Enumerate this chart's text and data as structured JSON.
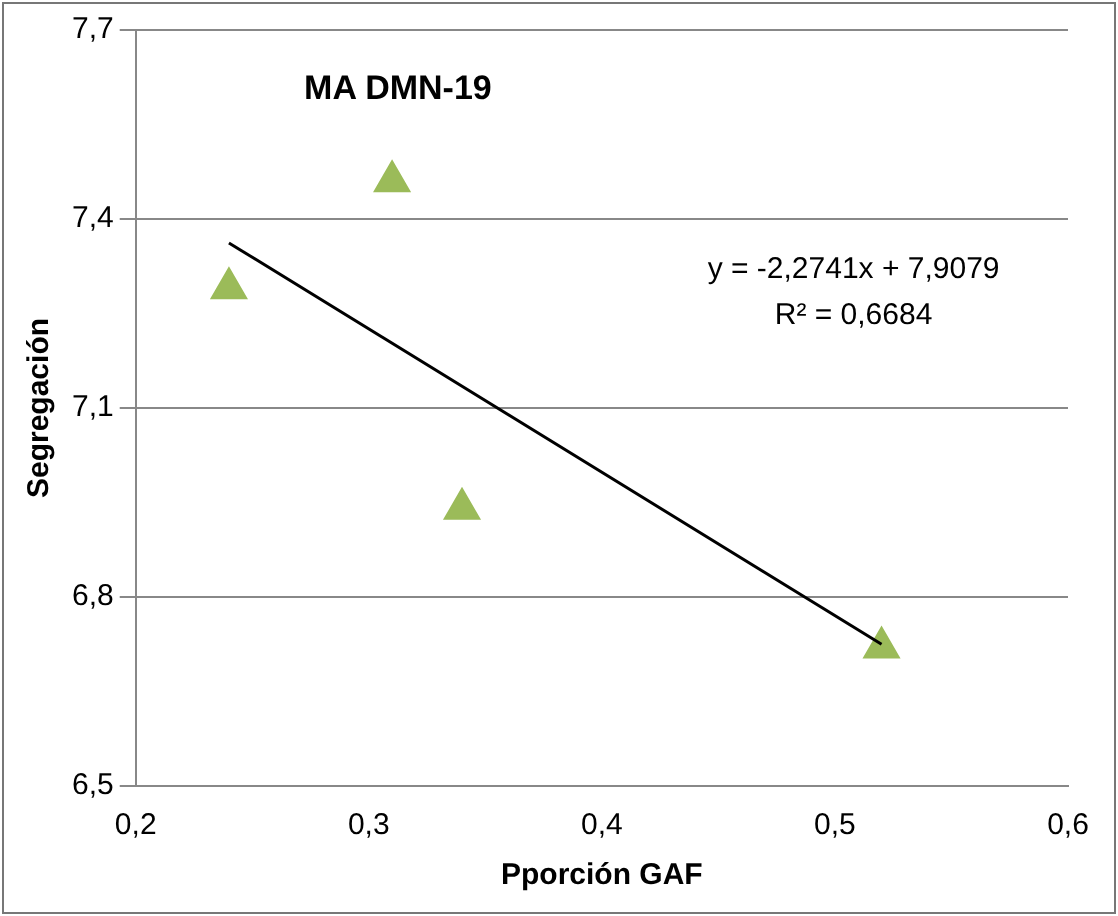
{
  "chart_data": {
    "type": "scatter",
    "title": "MA DMN-19",
    "xlabel": "Pporción GAF",
    "ylabel": "Segregación",
    "series": [
      {
        "color": "#9bbb59",
        "x": [
          0.24,
          0.31,
          0.34,
          0.52
        ],
        "values": [
          7.29,
          7.46,
          6.94,
          6.72
        ],
        "marker": "triangle"
      },
      {
        "type": "line",
        "color": "#000000",
        "x": [
          0.24,
          0.52
        ],
        "values": [
          7.362,
          6.725
        ],
        "marker": "none"
      }
    ],
    "annotations": [
      "y = -2,2741x + 7,9079",
      "R² = 0,6684"
    ],
    "xlim": [
      0.2,
      0.6
    ],
    "xticks": [
      {
        "value": 0.2,
        "label": "0,2"
      },
      {
        "value": 0.3,
        "label": "0,3"
      },
      {
        "value": 0.4,
        "label": "0,4"
      },
      {
        "value": 0.5,
        "label": "0,5"
      },
      {
        "value": 0.6,
        "label": "0,6"
      }
    ],
    "ylim": [
      6.5,
      7.7
    ],
    "yticks": [
      {
        "value": 6.5,
        "label": "6,5"
      },
      {
        "value": 6.8,
        "label": "6,8"
      },
      {
        "value": 7.1,
        "label": "7,1"
      },
      {
        "value": 7.4,
        "label": "7,4"
      },
      {
        "value": 7.7,
        "label": "7,7"
      }
    ],
    "grid": "y",
    "legend": false
  }
}
